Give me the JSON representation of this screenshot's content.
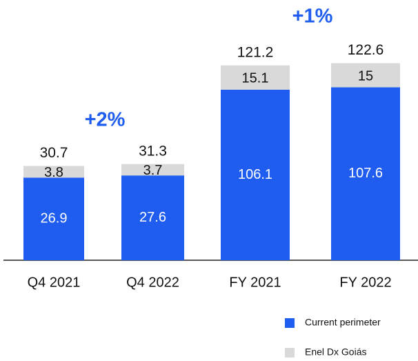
{
  "chart_data": [
    {
      "type": "bar",
      "stacked": true,
      "categories": [
        "Q4 2021",
        "Q4 2022"
      ],
      "series": [
        {
          "name": "Current perimeter",
          "color": "#1f5cf0",
          "values": [
            26.9,
            27.6
          ]
        },
        {
          "name": "Enel Dx Goiás",
          "color": "#d9d9d9",
          "values": [
            3.8,
            3.7
          ]
        }
      ],
      "totals": [
        30.7,
        31.3
      ],
      "annotation": "+2%",
      "ylim": [
        0,
        40
      ]
    },
    {
      "type": "bar",
      "stacked": true,
      "categories": [
        "FY 2021",
        "FY 2022"
      ],
      "series": [
        {
          "name": "Current perimeter",
          "color": "#1f5cf0",
          "values": [
            106.1,
            107.6
          ]
        },
        {
          "name": "Enel Dx Goiás",
          "color": "#d9d9d9",
          "values": [
            15.1,
            15.0
          ]
        }
      ],
      "totals": [
        121.2,
        122.6
      ],
      "annotation": "+1%",
      "ylim": [
        0,
        140
      ]
    }
  ]
}
